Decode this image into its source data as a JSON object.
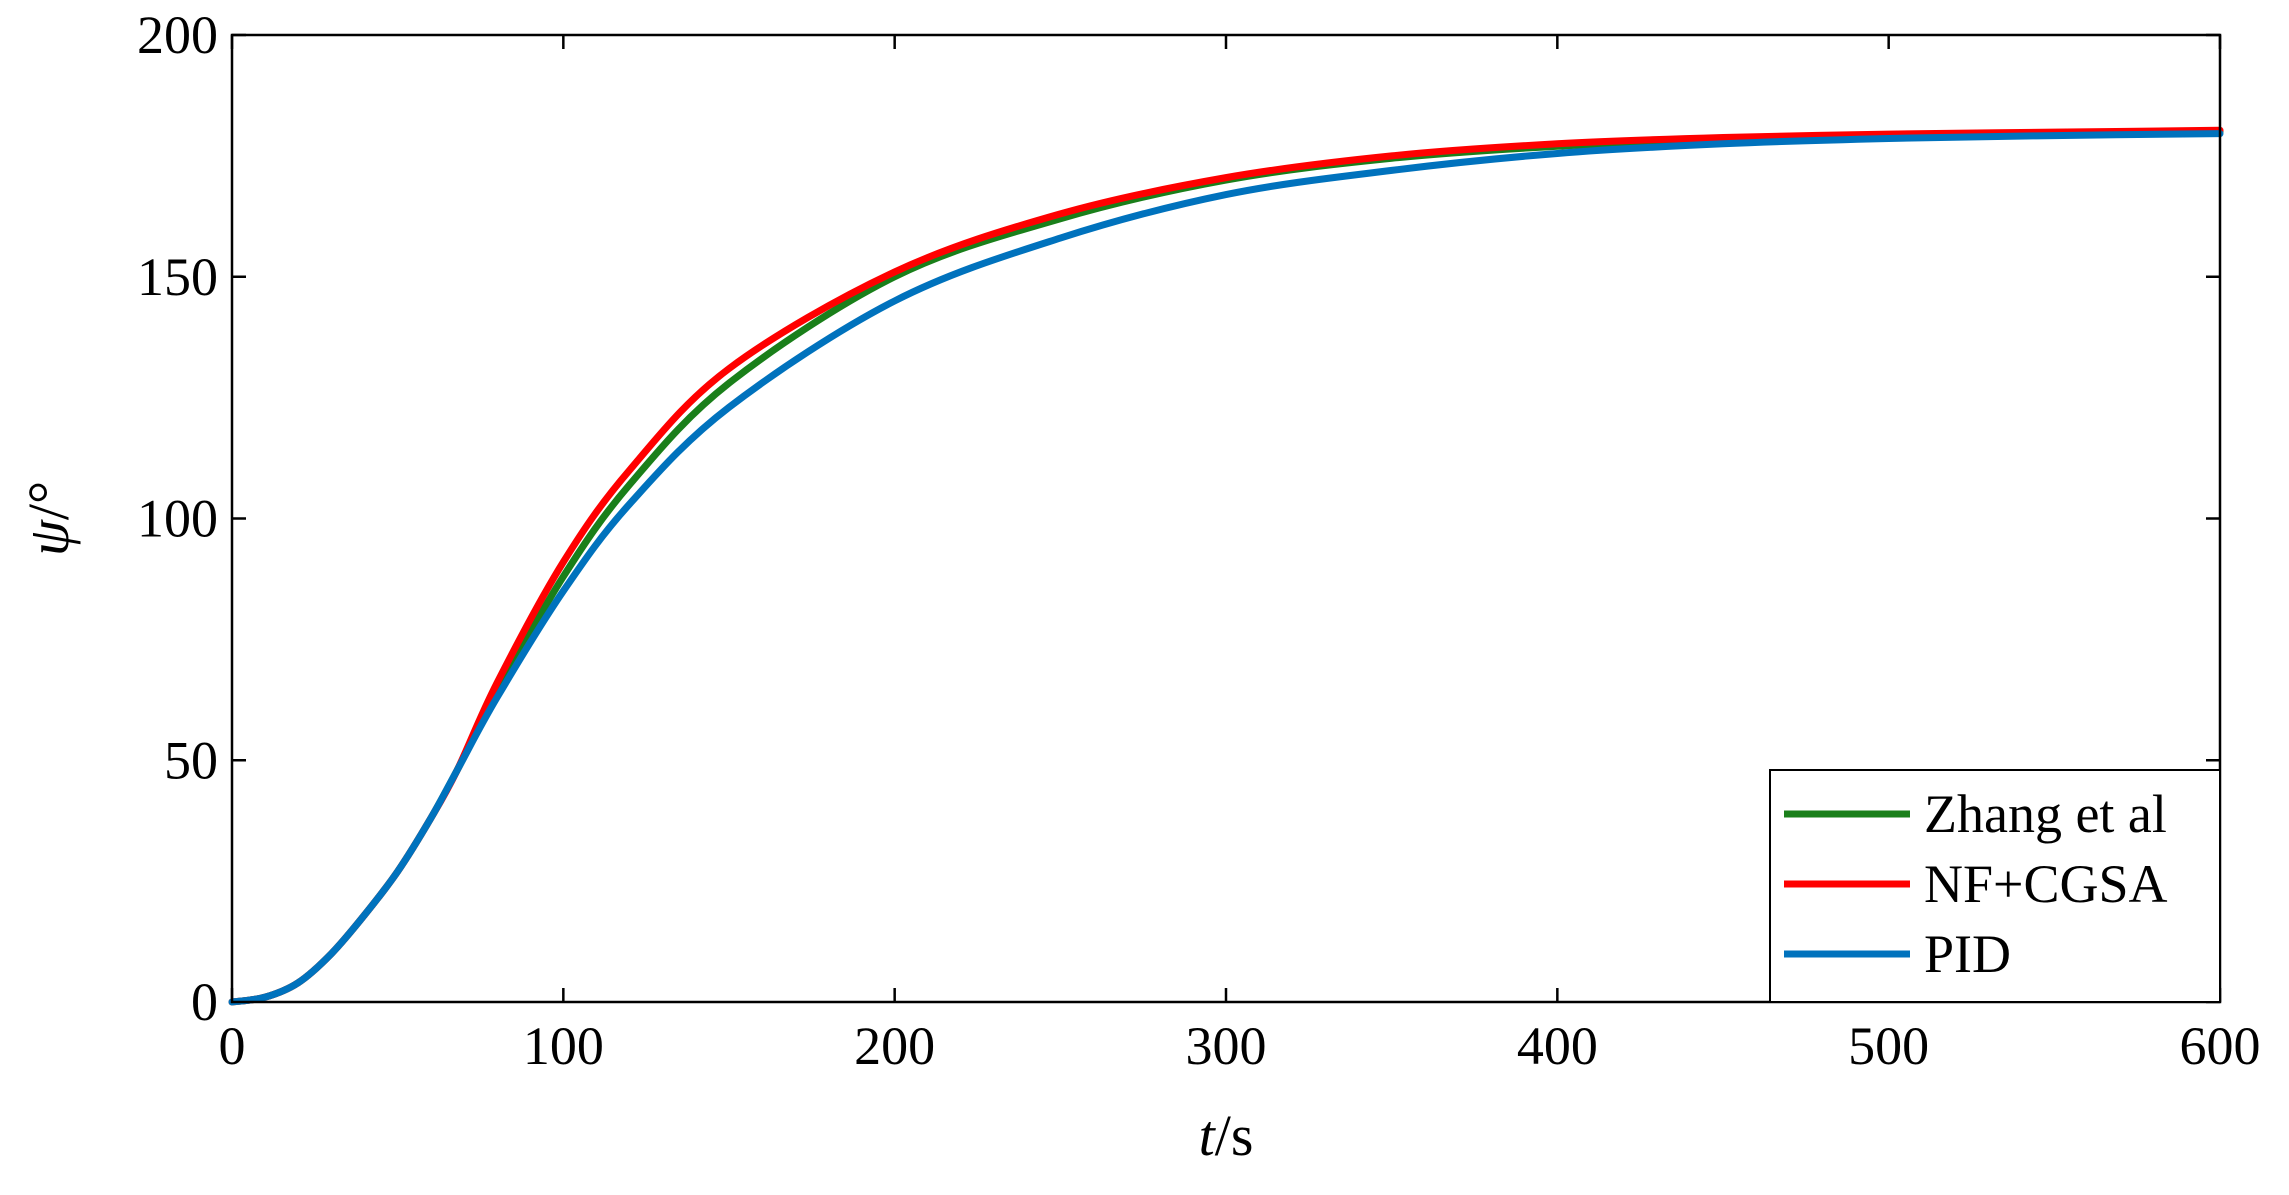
{
  "chart_data": {
    "type": "line",
    "title": "",
    "xlabel": {
      "var": "t",
      "unit": "/s"
    },
    "ylabel": {
      "var": "ψ",
      "unit": "/°"
    },
    "xlim": [
      0,
      600
    ],
    "ylim": [
      0,
      200
    ],
    "xticks": [
      0,
      100,
      200,
      300,
      400,
      500,
      600
    ],
    "yticks": [
      0,
      50,
      100,
      150,
      200
    ],
    "grid": false,
    "legend_position": "bottom-right",
    "x": [
      0,
      10,
      20,
      30,
      40,
      50,
      60,
      68,
      80,
      100,
      120,
      150,
      200,
      250,
      300,
      350,
      400,
      450,
      500,
      550,
      600
    ],
    "series": [
      {
        "name": "Zhang et al",
        "color": "#1a7f1a",
        "values": [
          0,
          1,
          4,
          10,
          18,
          27,
          38,
          48,
          64,
          88,
          107,
          128,
          150,
          162,
          170,
          174.5,
          177,
          178.3,
          179.1,
          179.6,
          180
        ]
      },
      {
        "name": "NF+CGSA",
        "color": "#ff0000",
        "values": [
          0,
          1,
          4,
          10,
          18,
          27,
          38,
          48,
          66,
          91,
          110,
          131,
          151,
          163,
          170.5,
          175,
          177.5,
          178.8,
          179.5,
          179.9,
          180.3
        ]
      },
      {
        "name": "PID",
        "color": "#0072bd",
        "values": [
          0,
          1,
          4,
          10,
          18,
          27,
          38,
          48,
          63,
          85,
          103,
          123,
          145,
          158,
          167,
          172,
          175.5,
          177.5,
          178.6,
          179.2,
          179.6
        ]
      }
    ]
  }
}
